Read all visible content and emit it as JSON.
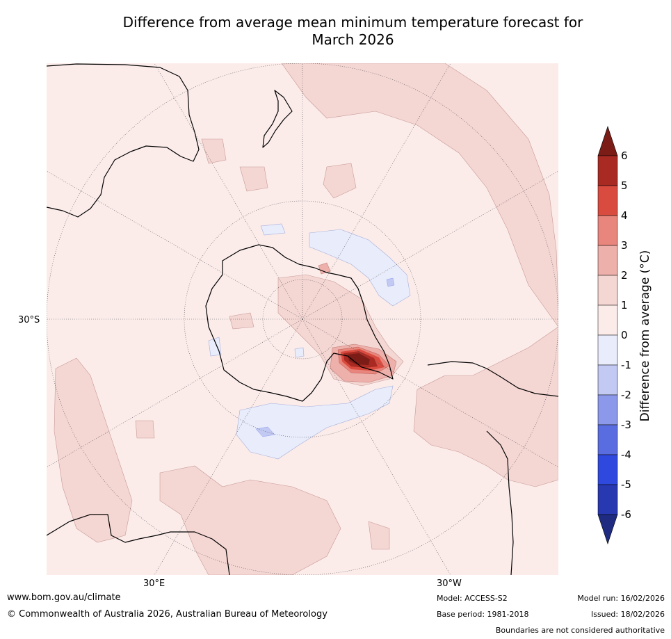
{
  "title": {
    "line1": "Difference from average mean minimum temperature forecast for",
    "line2": "March 2026"
  },
  "map": {
    "projection": "south-polar-stereographic",
    "lat_label": "30°S",
    "lon_labels": [
      "30°E",
      "30°W"
    ]
  },
  "legend": {
    "title": "Difference from average (°C)",
    "ticks": [
      "6",
      "5",
      "4",
      "3",
      "2",
      "1",
      "0",
      "-1",
      "-2",
      "-3",
      "-4",
      "-5",
      "-6"
    ],
    "colors": [
      "#7b1c16",
      "#a82a23",
      "#d94b3f",
      "#e8857c",
      "#eeb0aa",
      "#f4d6d3",
      "#fbecea",
      "#e8ecfb",
      "#c2c9f2",
      "#8c99ea",
      "#5a6de0",
      "#2f49de",
      "#2838b0",
      "#1e2b80"
    ]
  },
  "footer": {
    "website": "www.bom.gov.au/climate",
    "copyright": "© Commonwealth of Australia 2026, Australian Bureau of Meteorology",
    "model": "Model: ACCESS-S2",
    "base_period": "Base period: 1981-2018",
    "model_run": "Model run: 16/02/2026",
    "issued": "Issued: 18/02/2026",
    "disclaimer": "Boundaries are not considered authoritative"
  }
}
